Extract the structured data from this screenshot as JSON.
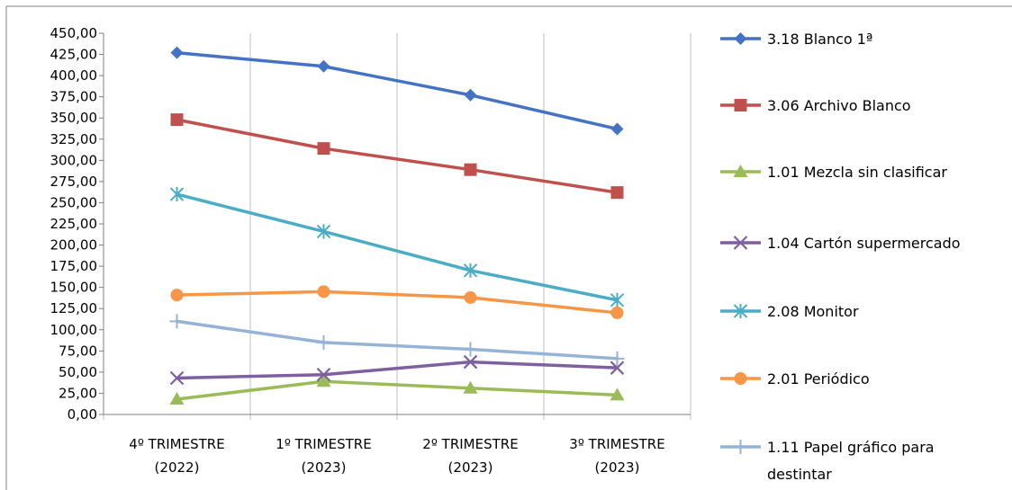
{
  "chart_data": {
    "type": "line",
    "categories": [
      [
        "4º TRIMESTRE",
        "(2022)"
      ],
      [
        "1º TRIMESTRE",
        "(2023)"
      ],
      [
        "2º TRIMESTRE",
        "(2023)"
      ],
      [
        "3º TRIMESTRE",
        "(2023)"
      ]
    ],
    "ylim": [
      0,
      450
    ],
    "ystep": 25,
    "y_tick_format": "comma-2-decimals",
    "grid": {
      "horizontal": false,
      "vertical": true
    },
    "legend_position": "right",
    "series": [
      {
        "name": "3.18 Blanco 1ª",
        "color": "#4472C4",
        "marker": "diamond",
        "values": [
          427,
          411,
          377,
          337
        ]
      },
      {
        "name": "3.06 Archivo Blanco",
        "color": "#C0504D",
        "marker": "square",
        "values": [
          348,
          314,
          289,
          262
        ]
      },
      {
        "name": "1.01 Mezcla sin clasificar",
        "color": "#9BBB59",
        "marker": "triangle",
        "values": [
          18,
          39,
          31,
          23
        ]
      },
      {
        "name": "1.04 Cartón supermercado",
        "color": "#7F5FA0",
        "marker": "x",
        "values": [
          43,
          47,
          62,
          55
        ]
      },
      {
        "name": "2.08 Monitor",
        "color": "#4BACC6",
        "marker": "star",
        "values": [
          260,
          216,
          170,
          135
        ]
      },
      {
        "name": "2.01 Periódico",
        "color": "#F79646",
        "marker": "circle",
        "values": [
          141,
          145,
          138,
          120
        ]
      },
      {
        "name": "1.11 Papel gráfico para destintar",
        "legend_lines": [
          "1.11 Papel gráfico para",
          "destintar"
        ],
        "color": "#95B3D7",
        "marker": "plus",
        "values": [
          110,
          85,
          77,
          66
        ]
      }
    ]
  }
}
